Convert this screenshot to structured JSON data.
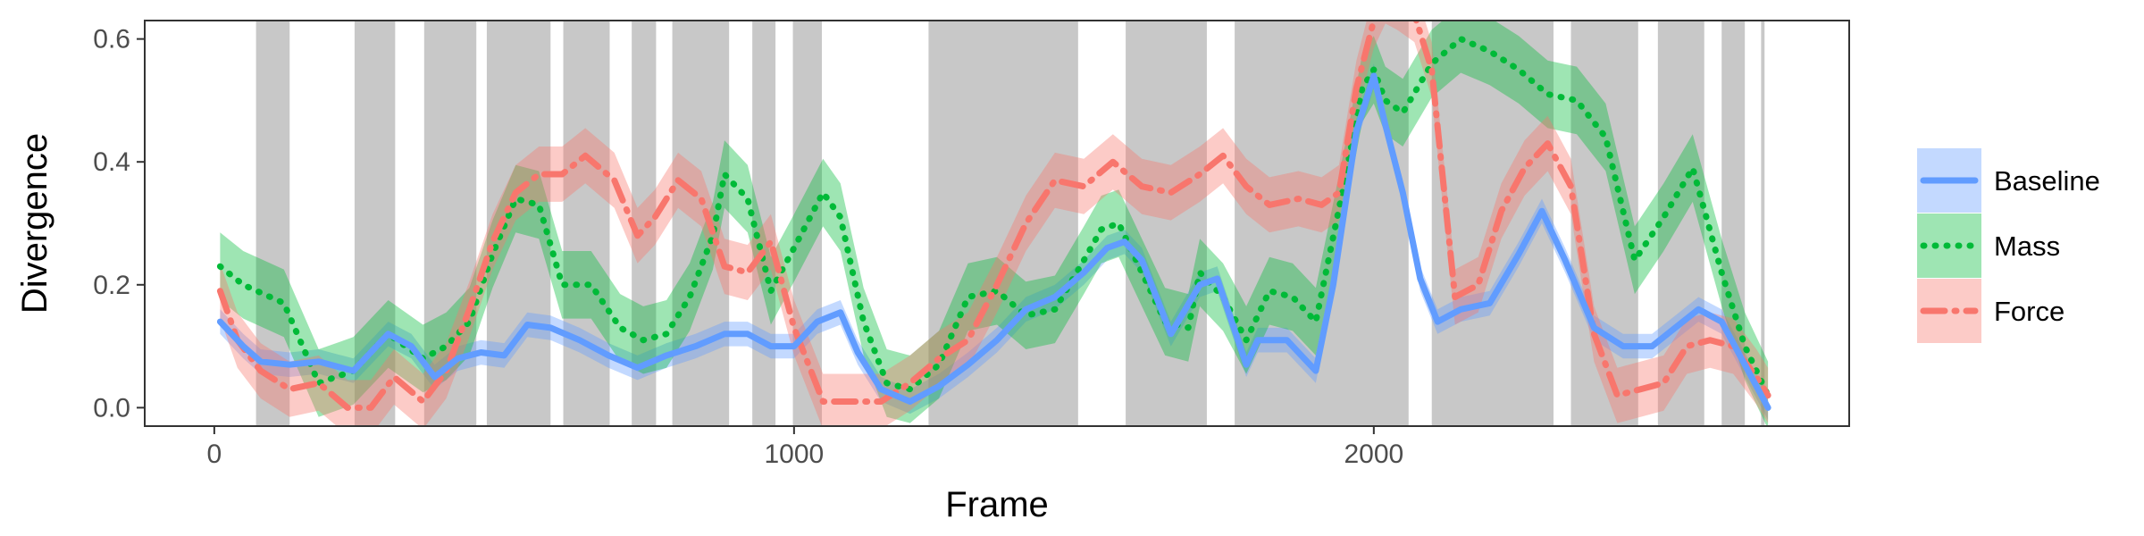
{
  "chart_data": {
    "type": "line",
    "title": "",
    "xlabel": "Frame",
    "ylabel": "Divergence",
    "xlim": [
      -120,
      2820
    ],
    "ylim": [
      -0.03,
      0.63
    ],
    "x_ticks": [
      0,
      1000,
      2000
    ],
    "x_tick_labels": [
      "0",
      "1000",
      "2000"
    ],
    "y_ticks": [
      0.0,
      0.2,
      0.4,
      0.6
    ],
    "y_tick_labels": [
      "0.0",
      "0.2",
      "0.4",
      "0.6"
    ],
    "grid": false,
    "legend_position": "right",
    "shaded_frame_intervals": [
      [
        72,
        130
      ],
      [
        242,
        312
      ],
      [
        362,
        452
      ],
      [
        470,
        580
      ],
      [
        602,
        682
      ],
      [
        720,
        762
      ],
      [
        790,
        888
      ],
      [
        928,
        968
      ],
      [
        998,
        1048
      ],
      [
        1232,
        1490
      ],
      [
        1572,
        1712
      ],
      [
        1760,
        2060
      ],
      [
        2100,
        2310
      ],
      [
        2340,
        2456
      ],
      [
        2490,
        2570
      ],
      [
        2600,
        2640
      ],
      [
        2668,
        2674
      ]
    ],
    "series": [
      {
        "name": "Baseline",
        "color": "#619CFF",
        "line_style": "solid",
        "x": [
          10,
          50,
          80,
          130,
          180,
          240,
          300,
          340,
          380,
          420,
          460,
          500,
          540,
          580,
          630,
          680,
          730,
          780,
          830,
          880,
          920,
          960,
          1000,
          1040,
          1080,
          1110,
          1150,
          1200,
          1250,
          1300,
          1350,
          1400,
          1450,
          1500,
          1540,
          1570,
          1600,
          1650,
          1700,
          1730,
          1780,
          1800,
          1850,
          1900,
          1930,
          1970,
          2000,
          2020,
          2050,
          2080,
          2110,
          2150,
          2200,
          2250,
          2290,
          2330,
          2380,
          2430,
          2480,
          2520,
          2560,
          2600,
          2640,
          2680
        ],
        "y": [
          0.14,
          0.1,
          0.075,
          0.07,
          0.075,
          0.06,
          0.12,
          0.1,
          0.05,
          0.08,
          0.09,
          0.085,
          0.135,
          0.13,
          0.11,
          0.085,
          0.065,
          0.085,
          0.1,
          0.12,
          0.12,
          0.1,
          0.1,
          0.14,
          0.155,
          0.09,
          0.03,
          0.01,
          0.035,
          0.07,
          0.11,
          0.16,
          0.18,
          0.22,
          0.26,
          0.27,
          0.24,
          0.12,
          0.2,
          0.21,
          0.07,
          0.11,
          0.11,
          0.06,
          0.2,
          0.45,
          0.54,
          0.46,
          0.35,
          0.21,
          0.14,
          0.16,
          0.17,
          0.25,
          0.32,
          0.24,
          0.13,
          0.1,
          0.1,
          0.13,
          0.16,
          0.14,
          0.07,
          0.0
        ],
        "band_half_width": 0.02
      },
      {
        "name": "Mass",
        "color": "#00BA38",
        "line_style": "dotted",
        "x": [
          10,
          50,
          120,
          180,
          240,
          300,
          360,
          400,
          440,
          480,
          520,
          560,
          600,
          650,
          700,
          740,
          780,
          820,
          860,
          880,
          920,
          960,
          1000,
          1050,
          1080,
          1120,
          1160,
          1200,
          1250,
          1300,
          1350,
          1400,
          1450,
          1500,
          1530,
          1560,
          1600,
          1640,
          1680,
          1700,
          1740,
          1780,
          1820,
          1860,
          1900,
          1950,
          1980,
          2000,
          2020,
          2050,
          2100,
          2150,
          2200,
          2250,
          2300,
          2350,
          2400,
          2450,
          2500,
          2550,
          2600,
          2640,
          2680
        ],
        "y": [
          0.23,
          0.2,
          0.17,
          0.04,
          0.06,
          0.12,
          0.08,
          0.1,
          0.14,
          0.25,
          0.34,
          0.33,
          0.2,
          0.2,
          0.13,
          0.11,
          0.12,
          0.18,
          0.28,
          0.38,
          0.34,
          0.19,
          0.26,
          0.35,
          0.31,
          0.14,
          0.04,
          0.03,
          0.07,
          0.18,
          0.19,
          0.15,
          0.16,
          0.24,
          0.29,
          0.3,
          0.22,
          0.14,
          0.13,
          0.22,
          0.18,
          0.11,
          0.19,
          0.18,
          0.14,
          0.37,
          0.52,
          0.55,
          0.5,
          0.48,
          0.56,
          0.6,
          0.58,
          0.55,
          0.51,
          0.5,
          0.44,
          0.24,
          0.31,
          0.39,
          0.22,
          0.1,
          0.02
        ],
        "band_half_width": 0.055
      },
      {
        "name": "Force",
        "color": "#F8766D",
        "line_style": "dashdot",
        "x": [
          10,
          40,
          80,
          130,
          180,
          230,
          270,
          310,
          360,
          400,
          440,
          480,
          520,
          560,
          600,
          640,
          690,
          730,
          760,
          800,
          840,
          880,
          920,
          960,
          1000,
          1050,
          1100,
          1150,
          1200,
          1250,
          1300,
          1350,
          1400,
          1450,
          1500,
          1550,
          1600,
          1650,
          1700,
          1740,
          1780,
          1820,
          1870,
          1910,
          1940,
          1970,
          2000,
          2020,
          2040,
          2070,
          2100,
          2140,
          2180,
          2220,
          2260,
          2300,
          2340,
          2380,
          2420,
          2460,
          2500,
          2540,
          2580,
          2620,
          2660,
          2680
        ],
        "y": [
          0.19,
          0.11,
          0.06,
          0.03,
          0.04,
          0.0,
          0.0,
          0.05,
          0.01,
          0.06,
          0.16,
          0.27,
          0.35,
          0.38,
          0.38,
          0.41,
          0.37,
          0.28,
          0.31,
          0.37,
          0.34,
          0.23,
          0.22,
          0.27,
          0.13,
          0.01,
          0.01,
          0.01,
          0.04,
          0.08,
          0.11,
          0.2,
          0.3,
          0.37,
          0.36,
          0.4,
          0.36,
          0.35,
          0.38,
          0.41,
          0.36,
          0.33,
          0.34,
          0.33,
          0.35,
          0.52,
          0.63,
          0.67,
          0.66,
          0.64,
          0.55,
          0.18,
          0.2,
          0.32,
          0.39,
          0.43,
          0.36,
          0.12,
          0.02,
          0.03,
          0.04,
          0.1,
          0.11,
          0.1,
          0.05,
          0.02
        ],
        "band_half_width": 0.045
      }
    ]
  }
}
